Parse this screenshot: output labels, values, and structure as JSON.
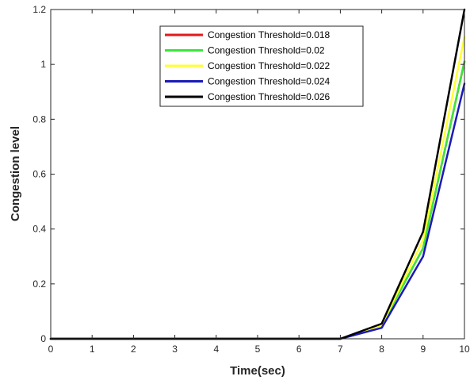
{
  "chart_data": {
    "type": "line",
    "title": "",
    "xlabel": "Time(sec)",
    "ylabel": "Congestion level",
    "x": [
      0,
      1,
      2,
      3,
      4,
      5,
      6,
      7,
      8,
      9,
      10
    ],
    "xlim": [
      0,
      10
    ],
    "ylim": [
      0,
      1.2
    ],
    "xticks": [
      "0",
      "1",
      "2",
      "3",
      "4",
      "5",
      "6",
      "7",
      "8",
      "9",
      "10"
    ],
    "yticks": [
      "0",
      "0.2",
      "0.4",
      "0.6",
      "0.8",
      "1",
      "1.2"
    ],
    "grid": false,
    "legend_position": "top-center",
    "series": [
      {
        "name": "Congestion Threshold=0.018",
        "color": "#e41a1c",
        "values": [
          0,
          0,
          0,
          0,
          0,
          0,
          0,
          0,
          0.05,
          0.33,
          1.01
        ]
      },
      {
        "name": "Congestion Threshold=0.02",
        "color": "#39e639",
        "values": [
          0,
          0,
          0,
          0,
          0,
          0,
          0,
          0,
          0.05,
          0.33,
          1.01
        ]
      },
      {
        "name": "Congestion Threshold=0.022",
        "color": "#ffff2e",
        "values": [
          0,
          0,
          0,
          0,
          0,
          0,
          0,
          0,
          0.05,
          0.36,
          1.1
        ]
      },
      {
        "name": "Congestion Threshold=0.024",
        "color": "#1a1ab8",
        "values": [
          0,
          0,
          0,
          0,
          0,
          0,
          0,
          0,
          0.04,
          0.3,
          0.93
        ]
      },
      {
        "name": "Congestion Threshold=0.026",
        "color": "#000000",
        "values": [
          0,
          0,
          0,
          0,
          0,
          0,
          0,
          0,
          0.055,
          0.39,
          1.2
        ]
      }
    ]
  }
}
